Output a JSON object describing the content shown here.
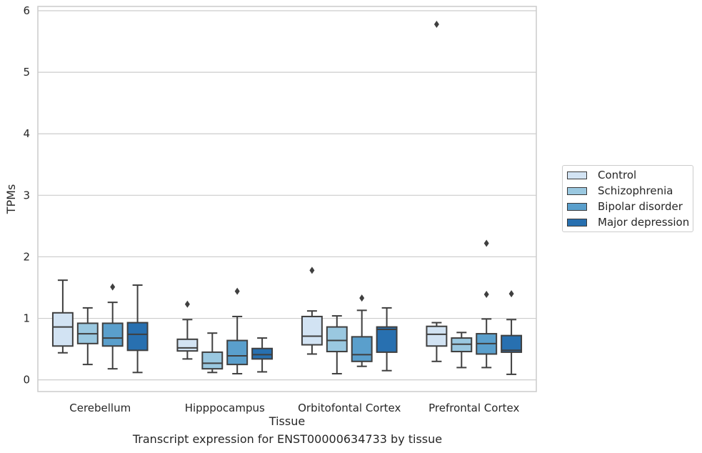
{
  "chart_data": {
    "type": "box",
    "xlabel": "Tissue",
    "ylabel": "TPMs",
    "ylim": [
      -0.19,
      6.07
    ],
    "yticks": [
      0,
      1,
      2,
      3,
      4,
      5,
      6
    ],
    "grid": "y",
    "legend_position": "right",
    "categories": [
      "Cerebellum",
      "Hipppocampus",
      "Orbitofontal Cortex",
      "Prefrontal Cortex"
    ],
    "series": [
      {
        "name": "Control",
        "color": "#d2e3f3",
        "boxes": [
          {
            "low": 0.44,
            "q1": 0.55,
            "median": 0.86,
            "q3": 1.09,
            "high": 1.62,
            "outliers": []
          },
          {
            "low": 0.34,
            "q1": 0.47,
            "median": 0.52,
            "q3": 0.66,
            "high": 0.98,
            "outliers": [
              1.23
            ]
          },
          {
            "low": 0.42,
            "q1": 0.57,
            "median": 0.71,
            "q3": 1.03,
            "high": 1.12,
            "outliers": [
              1.78
            ]
          },
          {
            "low": 0.3,
            "q1": 0.55,
            "median": 0.74,
            "q3": 0.87,
            "high": 0.93,
            "outliers": [
              5.78
            ]
          }
        ]
      },
      {
        "name": "Schizophrenia",
        "color": "#9ac8e0",
        "boxes": [
          {
            "low": 0.25,
            "q1": 0.59,
            "median": 0.75,
            "q3": 0.92,
            "high": 1.17,
            "outliers": []
          },
          {
            "low": 0.12,
            "q1": 0.18,
            "median": 0.27,
            "q3": 0.45,
            "high": 0.76,
            "outliers": []
          },
          {
            "low": 0.1,
            "q1": 0.46,
            "median": 0.64,
            "q3": 0.86,
            "high": 1.04,
            "outliers": []
          },
          {
            "low": 0.2,
            "q1": 0.46,
            "median": 0.58,
            "q3": 0.68,
            "high": 0.77,
            "outliers": []
          }
        ]
      },
      {
        "name": "Bipolar disorder",
        "color": "#5a9fcc",
        "boxes": [
          {
            "low": 0.18,
            "q1": 0.55,
            "median": 0.68,
            "q3": 0.92,
            "high": 1.26,
            "outliers": [
              1.51
            ]
          },
          {
            "low": 0.1,
            "q1": 0.25,
            "median": 0.39,
            "q3": 0.64,
            "high": 1.03,
            "outliers": [
              1.44
            ]
          },
          {
            "low": 0.22,
            "q1": 0.3,
            "median": 0.41,
            "q3": 0.7,
            "high": 1.13,
            "outliers": [
              1.33
            ]
          },
          {
            "low": 0.2,
            "q1": 0.42,
            "median": 0.59,
            "q3": 0.75,
            "high": 0.99,
            "outliers": [
              1.39,
              2.22
            ]
          }
        ]
      },
      {
        "name": "Major depression",
        "color": "#2870b0",
        "boxes": [
          {
            "low": 0.12,
            "q1": 0.48,
            "median": 0.74,
            "q3": 0.93,
            "high": 1.54,
            "outliers": []
          },
          {
            "low": 0.13,
            "q1": 0.34,
            "median": 0.41,
            "q3": 0.51,
            "high": 0.68,
            "outliers": []
          },
          {
            "low": 0.15,
            "q1": 0.45,
            "median": 0.82,
            "q3": 0.86,
            "high": 1.17,
            "outliers": []
          },
          {
            "low": 0.09,
            "q1": 0.45,
            "median": 0.48,
            "q3": 0.72,
            "high": 0.98,
            "outliers": [
              1.4
            ]
          }
        ]
      }
    ]
  },
  "caption": "Transcript expression for ENST00000634733 by tissue"
}
